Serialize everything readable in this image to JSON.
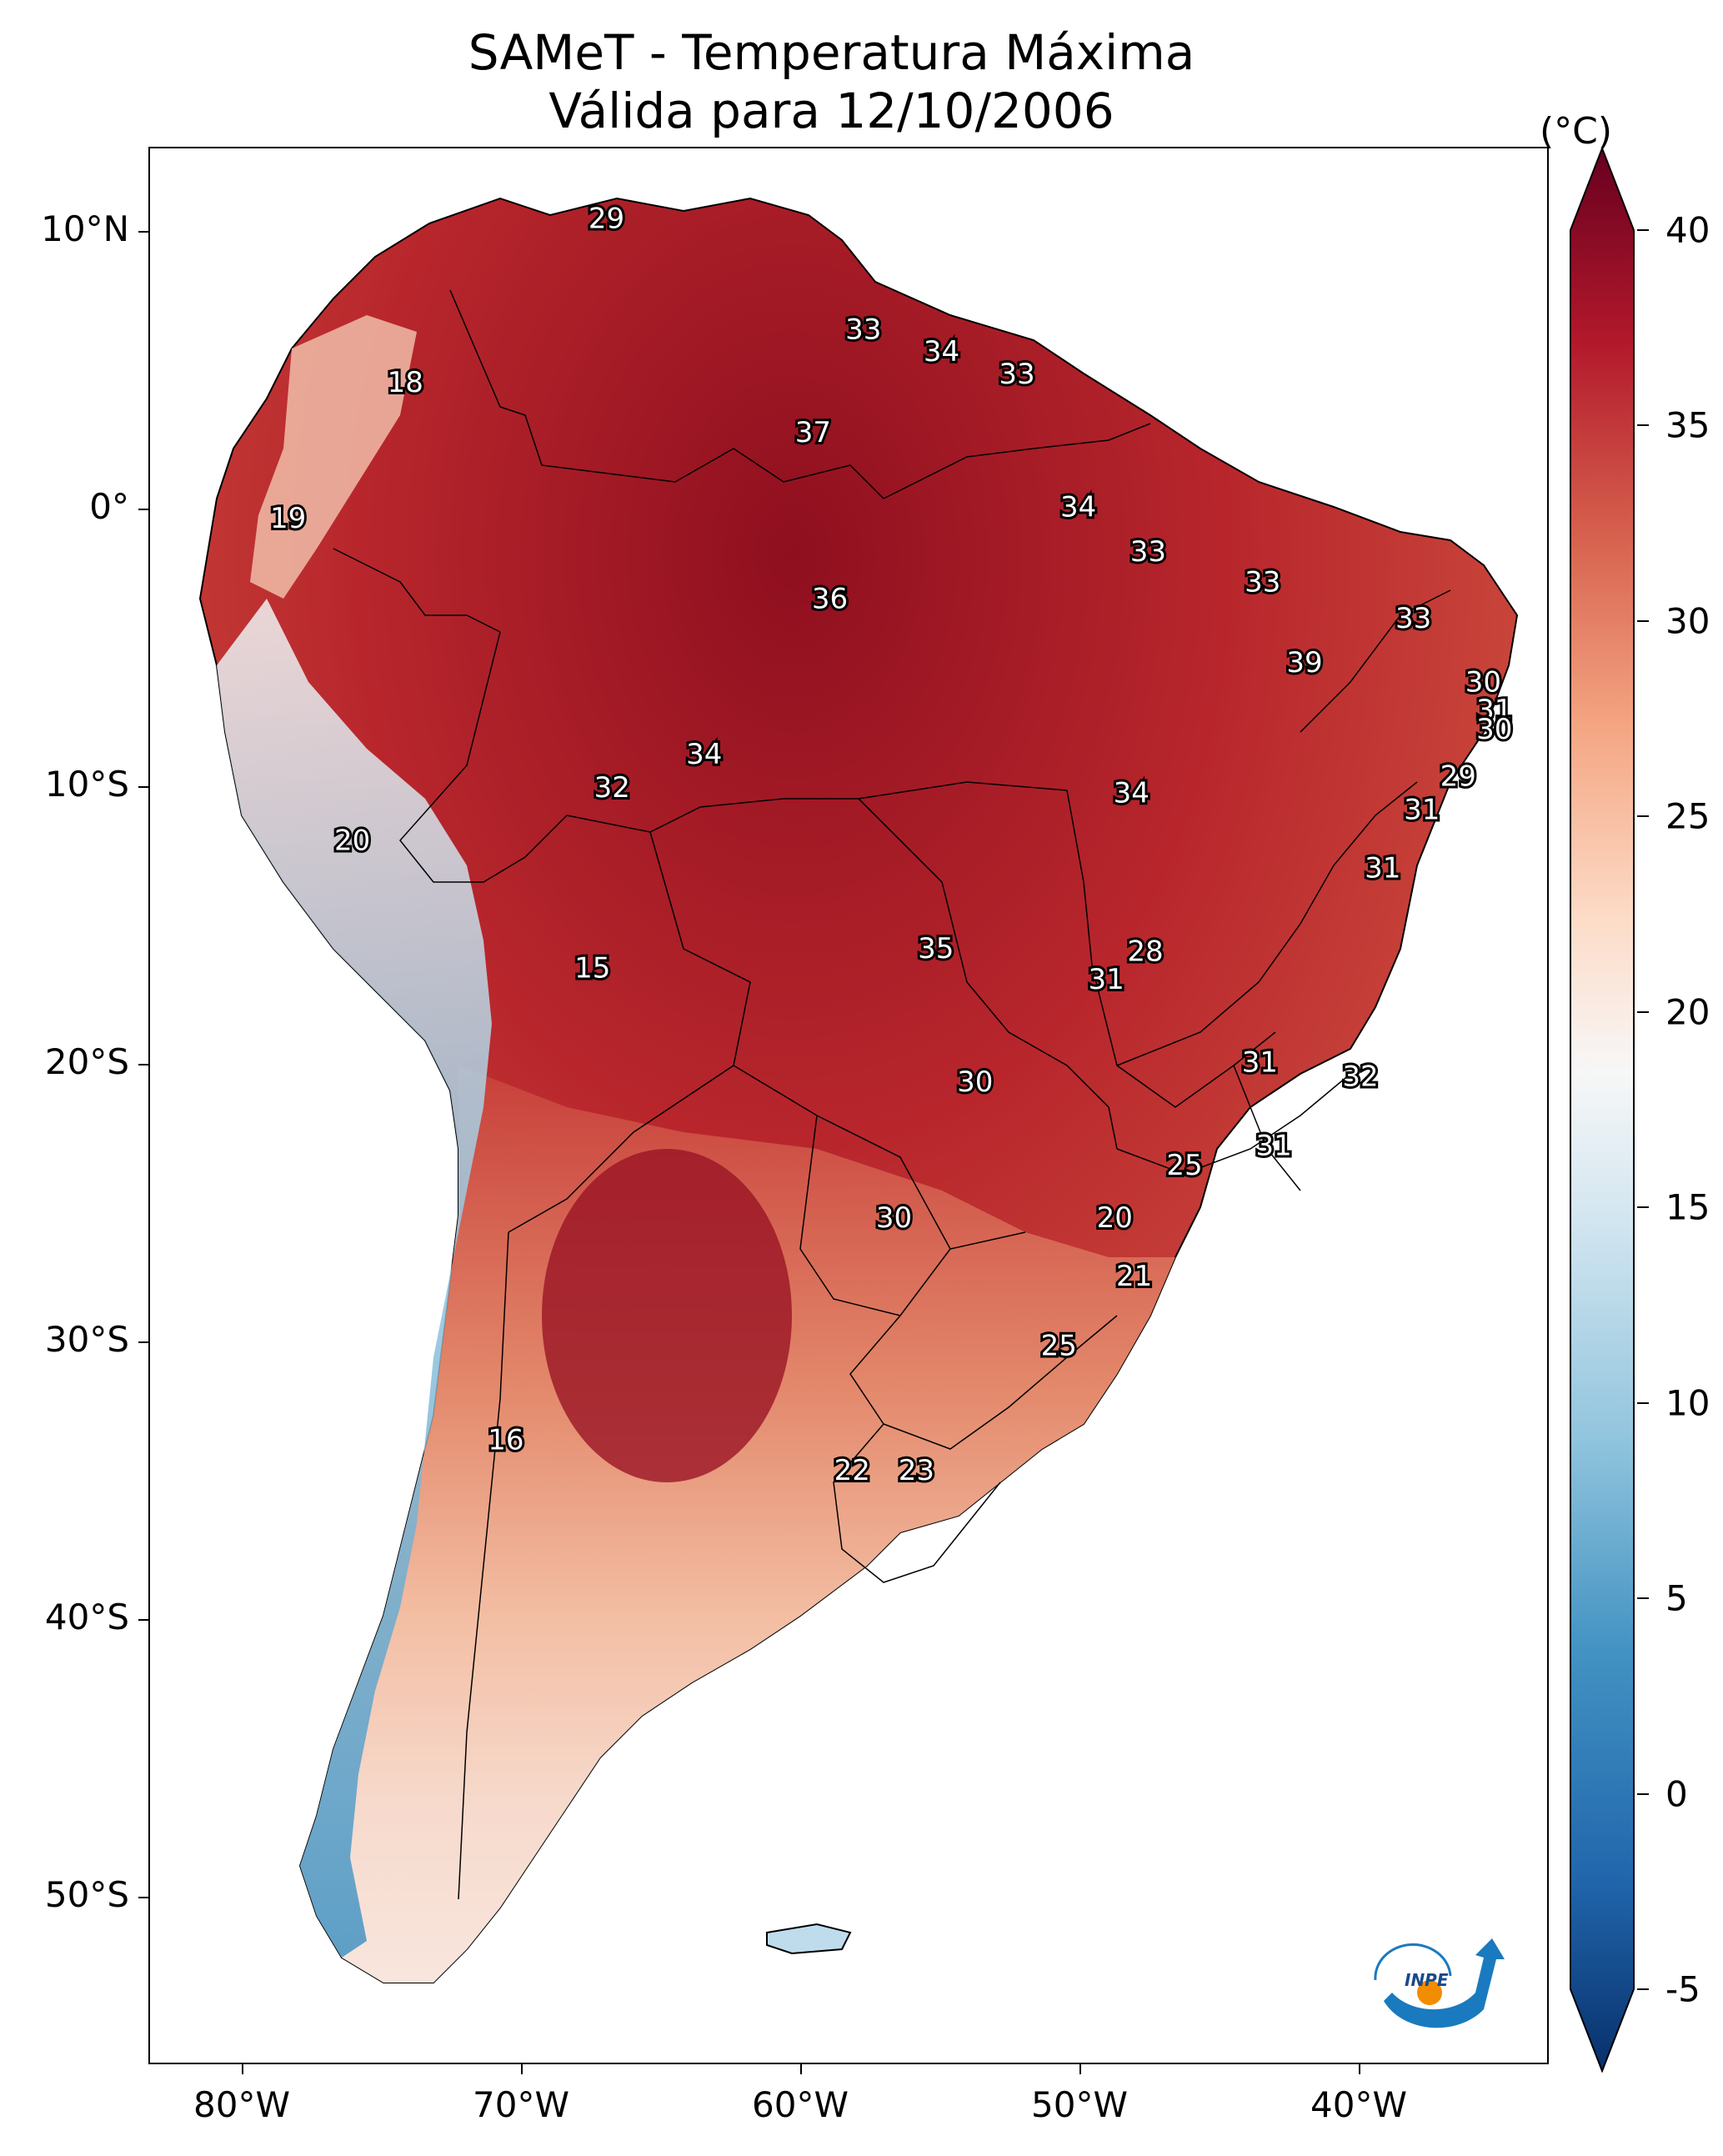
{
  "title": {
    "line1": "SAMeT - Temperatura Máxima",
    "line2": "Válida para 12/10/2006"
  },
  "axes": {
    "lat_labels": [
      "10°N",
      "0°",
      "10°S",
      "20°S",
      "30°S",
      "40°S",
      "50°S"
    ],
    "lon_labels": [
      "80°W",
      "70°W",
      "60°W",
      "50°W",
      "40°W"
    ]
  },
  "colorbar": {
    "unit": "(°C)",
    "ticks": [
      "40",
      "35",
      "30",
      "25",
      "20",
      "15",
      "10",
      "5",
      "0",
      "-5"
    ],
    "range": [
      -5,
      40
    ],
    "colors": [
      "#08306b",
      "#2166ac",
      "#4393c3",
      "#92c5de",
      "#d1e5f0",
      "#f7f7f7",
      "#fddbc7",
      "#f4a582",
      "#d6604d",
      "#b2182b",
      "#67001f"
    ]
  },
  "temperature_labels": [
    {
      "text": "29",
      "lon": -67,
      "lat": 10.5
    },
    {
      "text": "33",
      "lon": -57.8,
      "lat": 6.5
    },
    {
      "text": "34",
      "lon": -55,
      "lat": 5.7
    },
    {
      "text": "33",
      "lon": -52.3,
      "lat": 4.9
    },
    {
      "text": "18",
      "lon": -74.2,
      "lat": 4.6
    },
    {
      "text": "37",
      "lon": -59.6,
      "lat": 2.8
    },
    {
      "text": "34",
      "lon": -50.1,
      "lat": 0.1
    },
    {
      "text": "19",
      "lon": -78.4,
      "lat": -0.3
    },
    {
      "text": "33",
      "lon": -47.6,
      "lat": -1.5
    },
    {
      "text": "33",
      "lon": -43.5,
      "lat": -2.6
    },
    {
      "text": "36",
      "lon": -59,
      "lat": -3.2
    },
    {
      "text": "33",
      "lon": -38.1,
      "lat": -3.9
    },
    {
      "text": "39",
      "lon": -42,
      "lat": -5.5
    },
    {
      "text": "30",
      "lon": -35.6,
      "lat": -6.2
    },
    {
      "text": "31",
      "lon": -35.2,
      "lat": -7.2
    },
    {
      "text": "30",
      "lon": -35.2,
      "lat": -7.9
    },
    {
      "text": "34",
      "lon": -63.5,
      "lat": -8.8
    },
    {
      "text": "32",
      "lon": -66.8,
      "lat": -10
    },
    {
      "text": "34",
      "lon": -48.2,
      "lat": -10.2
    },
    {
      "text": "29",
      "lon": -36.5,
      "lat": -9.6
    },
    {
      "text": "31",
      "lon": -37.8,
      "lat": -10.8
    },
    {
      "text": "20",
      "lon": -76.1,
      "lat": -11.9
    },
    {
      "text": "31",
      "lon": -39.2,
      "lat": -12.9
    },
    {
      "text": "15",
      "lon": -67.5,
      "lat": -16.5
    },
    {
      "text": "35",
      "lon": -55.2,
      "lat": -15.8
    },
    {
      "text": "28",
      "lon": -47.7,
      "lat": -15.9
    },
    {
      "text": "31",
      "lon": -49.1,
      "lat": -16.9
    },
    {
      "text": "31",
      "lon": -43.6,
      "lat": -19.9
    },
    {
      "text": "32",
      "lon": -40,
      "lat": -20.4
    },
    {
      "text": "30",
      "lon": -53.8,
      "lat": -20.6
    },
    {
      "text": "31",
      "lon": -43.1,
      "lat": -22.9
    },
    {
      "text": "25",
      "lon": -46.3,
      "lat": -23.6
    },
    {
      "text": "30",
      "lon": -56.7,
      "lat": -25.5
    },
    {
      "text": "20",
      "lon": -48.8,
      "lat": -25.5
    },
    {
      "text": "21",
      "lon": -48.1,
      "lat": -27.6
    },
    {
      "text": "25",
      "lon": -50.8,
      "lat": -30.1
    },
    {
      "text": "16",
      "lon": -70.6,
      "lat": -33.5
    },
    {
      "text": "22",
      "lon": -58.2,
      "lat": -34.6
    },
    {
      "text": "23",
      "lon": -55.9,
      "lat": -34.6
    }
  ],
  "logo": {
    "text": "INPE"
  }
}
